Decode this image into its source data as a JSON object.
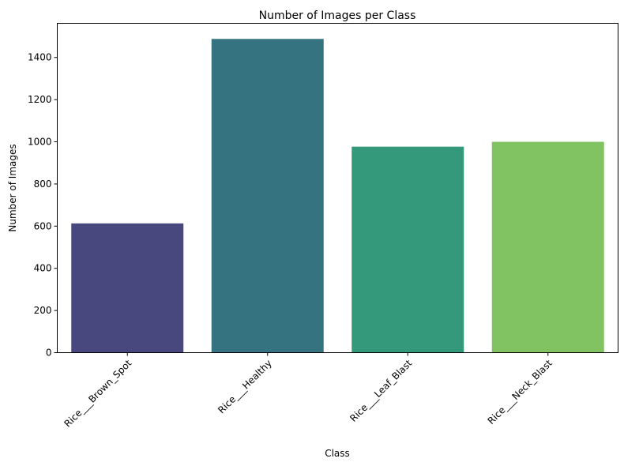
{
  "chart_data": {
    "type": "bar",
    "title": "Number of Images per Class",
    "xlabel": "Class",
    "ylabel": "Number of Images",
    "categories": [
      "Rice___Brown_Spot",
      "Rice___Healthy",
      "Rice___Leaf_Blast",
      "Rice___Neck_Blast"
    ],
    "values": [
      613,
      1488,
      977,
      1000
    ],
    "colors": [
      "#48487e",
      "#367380",
      "#34987a",
      "#81c363"
    ],
    "ylim": [
      0,
      1562
    ],
    "yticks": [
      0,
      200,
      400,
      600,
      800,
      1000,
      1200,
      1400
    ],
    "grid": false,
    "legend": "none"
  }
}
